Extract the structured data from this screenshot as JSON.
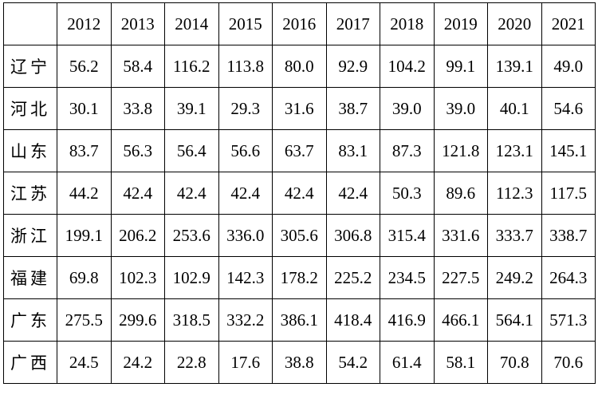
{
  "table": {
    "corner": "",
    "years": [
      "2012",
      "2013",
      "2014",
      "2015",
      "2016",
      "2017",
      "2018",
      "2019",
      "2020",
      "2021"
    ],
    "rows": [
      {
        "label": "辽宁",
        "values": [
          "56.2",
          "58.4",
          "116.2",
          "113.8",
          "80.0",
          "92.9",
          "104.2",
          "99.1",
          "139.1",
          "49.0"
        ]
      },
      {
        "label": "河北",
        "values": [
          "30.1",
          "33.8",
          "39.1",
          "29.3",
          "31.6",
          "38.7",
          "39.0",
          "39.0",
          "40.1",
          "54.6"
        ]
      },
      {
        "label": "山东",
        "values": [
          "83.7",
          "56.3",
          "56.4",
          "56.6",
          "63.7",
          "83.1",
          "87.3",
          "121.8",
          "123.1",
          "145.1"
        ]
      },
      {
        "label": "江苏",
        "values": [
          "44.2",
          "42.4",
          "42.4",
          "42.4",
          "42.4",
          "42.4",
          "50.3",
          "89.6",
          "112.3",
          "117.5"
        ]
      },
      {
        "label": "浙江",
        "values": [
          "199.1",
          "206.2",
          "253.6",
          "336.0",
          "305.6",
          "306.8",
          "315.4",
          "331.6",
          "333.7",
          "338.7"
        ]
      },
      {
        "label": "福建",
        "values": [
          "69.8",
          "102.3",
          "102.9",
          "142.3",
          "178.2",
          "225.2",
          "234.5",
          "227.5",
          "249.2",
          "264.3"
        ]
      },
      {
        "label": "广东",
        "values": [
          "275.5",
          "299.6",
          "318.5",
          "332.2",
          "386.1",
          "418.4",
          "416.9",
          "466.1",
          "564.1",
          "571.3"
        ]
      },
      {
        "label": "广西",
        "values": [
          "24.5",
          "24.2",
          "22.8",
          "17.6",
          "38.8",
          "54.2",
          "61.4",
          "58.1",
          "70.8",
          "70.6"
        ]
      }
    ]
  }
}
